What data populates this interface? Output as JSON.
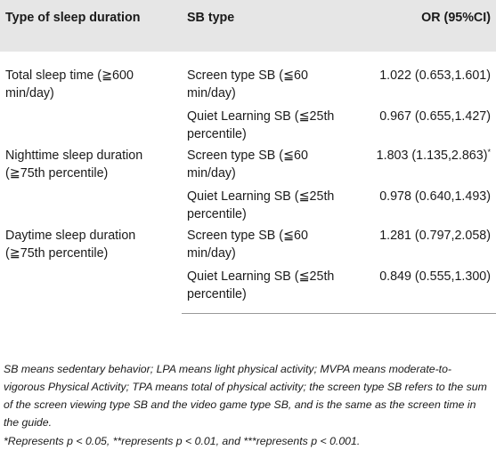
{
  "table": {
    "headers": {
      "col1": "Type of sleep duration",
      "col2": "SB type",
      "col3": "OR (95%CI)"
    },
    "groups": [
      {
        "label": "Total sleep time (≧600 min/day)",
        "rows": [
          {
            "sb": "Screen type SB (≦60 min/day)",
            "or": "1.022 (0.653,1.601)",
            "mark": ""
          },
          {
            "sb": "Quiet Learning SB (≦25th percentile)",
            "or": "0.967 (0.655,1.427)",
            "mark": ""
          }
        ]
      },
      {
        "label": "Nighttime sleep duration (≧75th percentile)",
        "rows": [
          {
            "sb": "Screen type SB (≦60 min/day)",
            "or": "1.803 (1.135,2.863)",
            "mark": "*"
          },
          {
            "sb": "Quiet Learning SB (≦25th percentile)",
            "or": "0.978 (0.640,1.493)",
            "mark": ""
          }
        ]
      },
      {
        "label": "Daytime sleep duration (≧75th percentile)",
        "rows": [
          {
            "sb": "Screen type SB (≦60 min/day)",
            "or": "1.281 (0.797,2.058)",
            "mark": ""
          },
          {
            "sb": "Quiet Learning SB (≦25th percentile)",
            "or": "0.849 (0.555,1.300)",
            "mark": ""
          }
        ]
      }
    ]
  },
  "notes": {
    "abbreviations": "SB means sedentary behavior; LPA means light physical activity; MVPA means moderate-to-vigorous Physical Activity; TPA means total of physical activity; the screen type SB refers to the sum of the screen viewing type SB and the video game type SB, and is the same as the screen time in the guide.",
    "significance": "*Represents p < 0.05, **represents p < 0.01, and ***represents p < 0.001."
  },
  "colors": {
    "header_bg": "#e6e6e6",
    "rule": "#999999",
    "text": "#1a1a1a"
  }
}
